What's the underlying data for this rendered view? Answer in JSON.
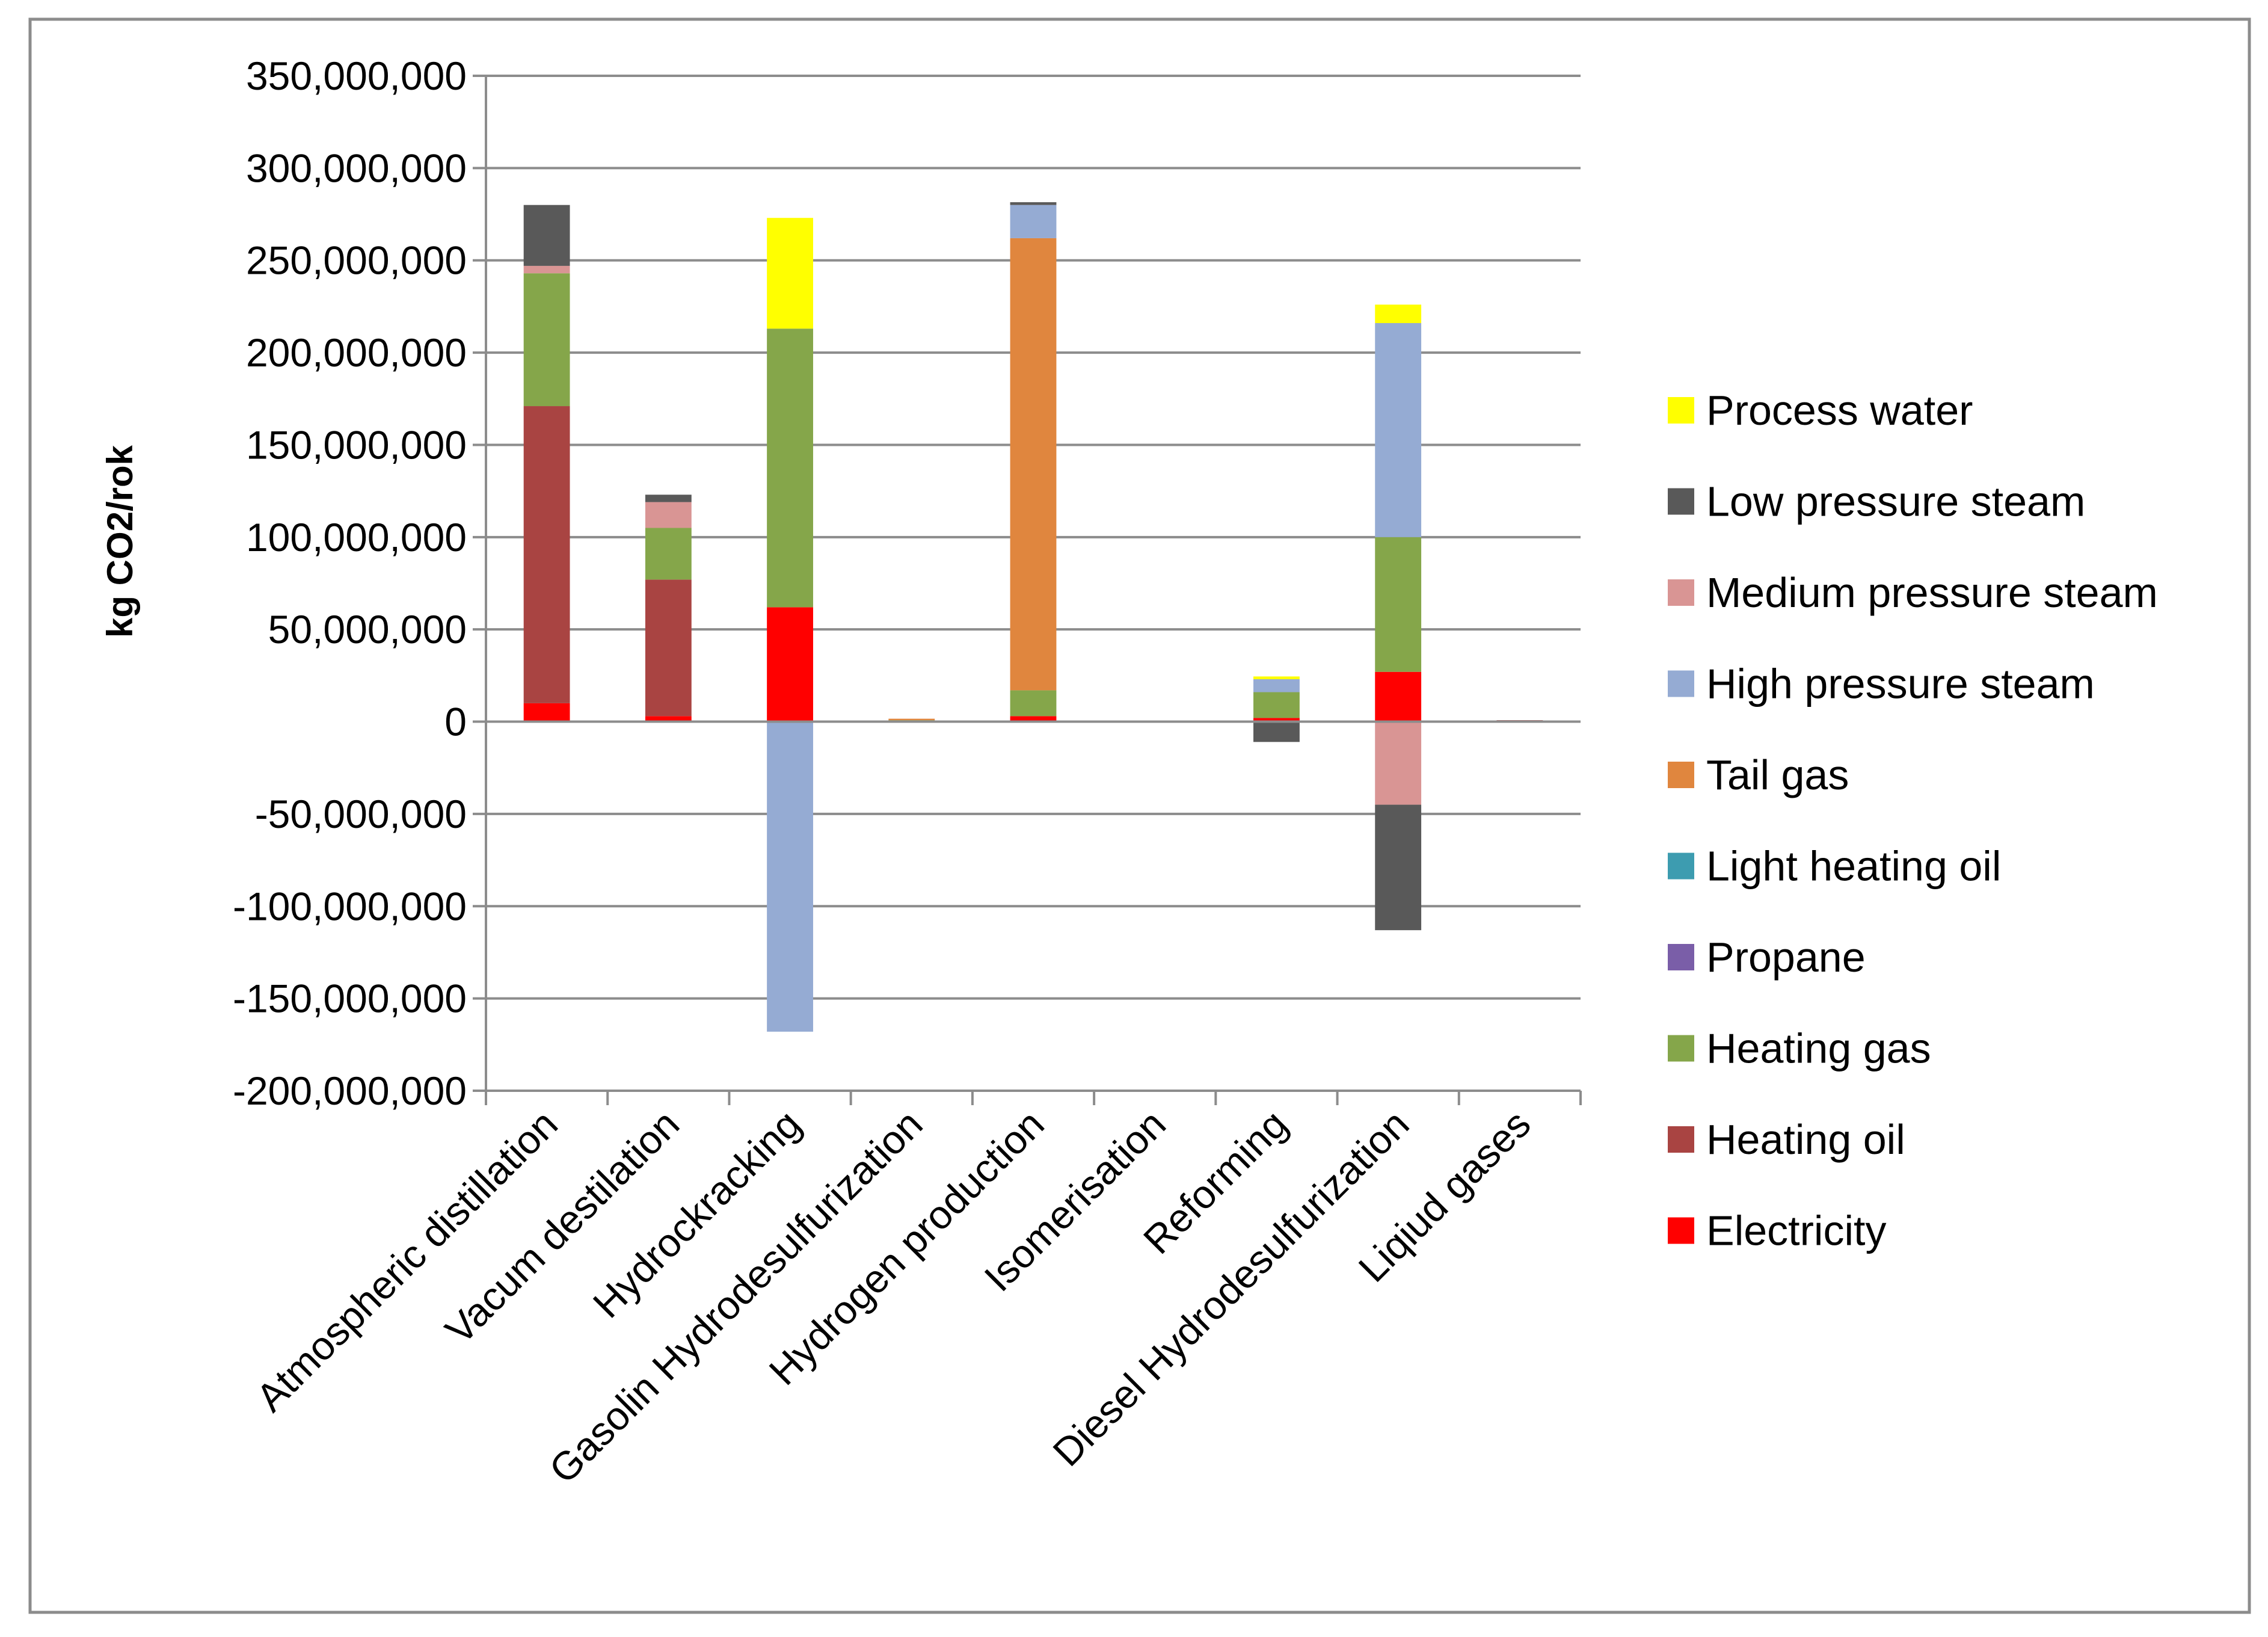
{
  "chart_data": {
    "type": "bar",
    "stacked": true,
    "title": "",
    "xlabel": "",
    "ylabel": "kg CO2/rok",
    "ylim": [
      -200000000,
      350000000
    ],
    "ytick_step": 50000000,
    "yticks": [
      "350,000,000",
      "300,000,000",
      "250,000,000",
      "200,000,000",
      "150,000,000",
      "100,000,000",
      "50,000,000",
      "0",
      "-50,000,000",
      "-100,000,000",
      "-150,000,000",
      "-200,000,000"
    ],
    "grid": true,
    "legend_position": "right",
    "categories": [
      "Atmospheric distillation",
      "Vacum destilation",
      "Hydrockracking",
      "Gasolin Hydrodesulfurization",
      "Hydrogen production",
      "Isomerisation",
      "Reforming",
      "Diesel Hydrodesulfurization",
      "Liqiud gases"
    ],
    "series": [
      {
        "name": "Electricity",
        "color": "#ff0000",
        "values": [
          10000000,
          3000000,
          62000000,
          0,
          3000000,
          0,
          2000000,
          27000000,
          0
        ]
      },
      {
        "name": "Heating oil",
        "color": "#a94442",
        "values": [
          161000000,
          74000000,
          0,
          0,
          0,
          0,
          0,
          0,
          800000
        ]
      },
      {
        "name": "Heating gas",
        "color": "#85a64a",
        "values": [
          72000000,
          28000000,
          151000000,
          800000,
          14000000,
          0,
          14000000,
          73000000,
          0
        ]
      },
      {
        "name": "Propane",
        "color": "#7a5ea8",
        "values": [
          0,
          0,
          0,
          0,
          0,
          0,
          0,
          0,
          0
        ]
      },
      {
        "name": "Light heating oil",
        "color": "#3d9cb0",
        "values": [
          0,
          0,
          0,
          0,
          0,
          0,
          0,
          0,
          0
        ]
      },
      {
        "name": "Tail gas",
        "color": "#e0863e",
        "values": [
          0,
          0,
          0,
          800000,
          245000000,
          0,
          0,
          0,
          0
        ]
      },
      {
        "name": "High pressure steam",
        "color": "#95abd3",
        "values": [
          0,
          0,
          -168000000,
          0,
          18000000,
          0,
          7000000,
          116000000,
          0
        ]
      },
      {
        "name": "Medium pressure steam",
        "color": "#d99594",
        "values": [
          4000000,
          14000000,
          0,
          0,
          0,
          0,
          0,
          -45000000,
          0
        ]
      },
      {
        "name": "Low pressure steam",
        "color": "#595959",
        "values": [
          33000000,
          4000000,
          0,
          0,
          1500000,
          0,
          -11000000,
          -68000000,
          0
        ]
      },
      {
        "name": "Process water",
        "color": "#ffff00",
        "values": [
          0,
          0,
          60000000,
          0,
          0,
          0,
          1500000,
          10000000,
          0
        ]
      }
    ],
    "legend_order": [
      "Process water",
      "Low pressure steam",
      "Medium pressure steam",
      "High pressure steam",
      "Tail gas",
      "Light heating oil",
      "Propane",
      "Heating gas",
      "Heating oil",
      "Electricity"
    ]
  }
}
